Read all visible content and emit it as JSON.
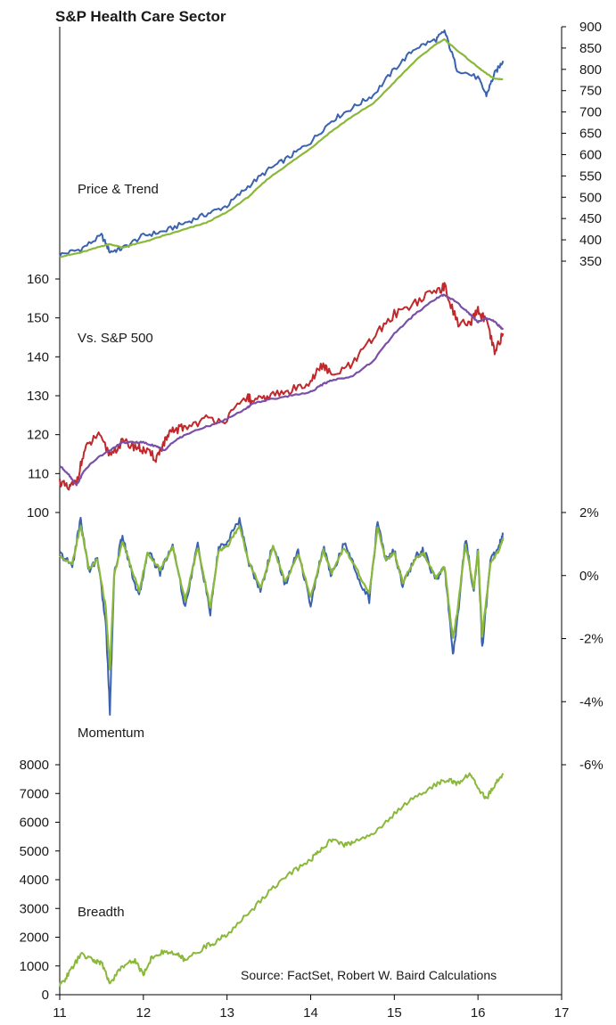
{
  "title": "S&P Health Care Sector",
  "source": "Source: FactSet, Robert W. Baird Calculations",
  "colors": {
    "price": "#3a62b0",
    "trend": "#8ab83a",
    "rel": "#c0282c",
    "rel_trend": "#7a4fa8",
    "mom1": "#3a62b0",
    "mom2": "#8ab83a",
    "breadth": "#8ab83a",
    "axis": "#000000"
  },
  "chart_data": [
    {
      "type": "line",
      "panel_label": "Price & Trend",
      "y_axis": "right",
      "ylim": [
        350,
        900
      ],
      "yticks": [
        "350",
        "400",
        "450",
        "500",
        "550",
        "600",
        "650",
        "700",
        "750",
        "800",
        "850",
        "900"
      ],
      "x": [
        11,
        11.25,
        11.5,
        11.6,
        11.75,
        12,
        12.25,
        12.5,
        12.75,
        13,
        13.25,
        13.5,
        13.75,
        14,
        14.25,
        14.5,
        14.75,
        15,
        15.25,
        15.5,
        15.6,
        15.75,
        16,
        16.1,
        16.2,
        16.3
      ],
      "series": [
        {
          "values": [
            365,
            378,
            410,
            372,
            380,
            410,
            420,
            440,
            460,
            480,
            525,
            565,
            595,
            630,
            680,
            710,
            740,
            800,
            850,
            870,
            890,
            800,
            780,
            740,
            790,
            820
          ]
        },
        {
          "values": [
            360,
            370,
            385,
            390,
            382,
            395,
            410,
            425,
            440,
            465,
            500,
            545,
            580,
            615,
            655,
            690,
            720,
            770,
            820,
            860,
            870,
            845,
            805,
            790,
            778,
            777
          ]
        }
      ]
    },
    {
      "type": "line",
      "panel_label": "Vs. S&P 500",
      "y_axis": "left",
      "ylim": [
        100,
        160
      ],
      "yticks": [
        "100",
        "110",
        "120",
        "130",
        "140",
        "150",
        "160"
      ],
      "x": [
        11,
        11.1,
        11.2,
        11.3,
        11.45,
        11.6,
        11.75,
        11.9,
        12,
        12.15,
        12.25,
        12.35,
        12.5,
        12.75,
        13,
        13.25,
        13.3,
        13.5,
        13.75,
        14,
        14.15,
        14.25,
        14.5,
        14.75,
        15,
        15.25,
        15.5,
        15.6,
        15.75,
        15.9,
        16,
        16.1,
        16.2,
        16.3
      ],
      "series": [
        {
          "values": [
            108,
            106,
            108,
            116,
            120,
            115,
            118,
            117,
            116,
            114,
            118,
            121,
            122,
            124,
            124,
            130,
            128,
            130,
            131,
            134,
            138,
            135,
            138,
            145,
            151,
            154,
            157,
            158,
            149,
            148,
            152,
            149,
            141,
            146
          ]
        },
        {
          "values": [
            112,
            110,
            107,
            111,
            114,
            116,
            118,
            118,
            118,
            117,
            116,
            118,
            120,
            122,
            124,
            127,
            128,
            129,
            130,
            131,
            133,
            134,
            135,
            139,
            146,
            151,
            155,
            156,
            154,
            151,
            149,
            150,
            149,
            147
          ]
        }
      ]
    },
    {
      "type": "line",
      "panel_label": "Momentum",
      "y_axis": "right",
      "ylim": [
        -6,
        2
      ],
      "yticks": [
        "-6%",
        "-4%",
        "-2%",
        "0%",
        "2%"
      ],
      "x": [
        11,
        11.15,
        11.25,
        11.35,
        11.45,
        11.55,
        11.6,
        11.65,
        11.75,
        11.85,
        11.95,
        12.05,
        12.2,
        12.35,
        12.5,
        12.65,
        12.8,
        12.9,
        13,
        13.15,
        13.25,
        13.4,
        13.55,
        13.7,
        13.85,
        14,
        14.15,
        14.25,
        14.4,
        14.55,
        14.7,
        14.8,
        14.9,
        15,
        15.1,
        15.25,
        15.35,
        15.5,
        15.6,
        15.7,
        15.75,
        15.85,
        15.95,
        16,
        16.05,
        16.15,
        16.25,
        16.3
      ],
      "series": [
        {
          "values": [
            0.7,
            0.3,
            1.8,
            0.1,
            0.6,
            -1.5,
            -4.3,
            0.0,
            1.3,
            0.2,
            -0.7,
            0.8,
            0.1,
            1.0,
            -1.0,
            1.0,
            -1.2,
            0.9,
            1.0,
            1.8,
            0.5,
            -0.5,
            1.0,
            -0.3,
            0.8,
            -0.9,
            0.9,
            0.0,
            1.0,
            0.1,
            -0.8,
            1.7,
            0.5,
            0.8,
            -0.3,
            0.6,
            0.8,
            -0.2,
            0.3,
            -2.5,
            -1.5,
            1.2,
            -0.5,
            0.9,
            -2.3,
            0.5,
            0.9,
            1.3
          ]
        },
        {
          "values": [
            0.6,
            0.4,
            1.6,
            0.2,
            0.5,
            -1.0,
            -3.0,
            0.0,
            1.1,
            0.3,
            -0.5,
            0.7,
            0.2,
            0.9,
            -0.8,
            0.9,
            -1.0,
            0.8,
            0.9,
            1.6,
            0.5,
            -0.4,
            0.9,
            -0.2,
            0.7,
            -0.7,
            0.8,
            0.1,
            0.9,
            0.2,
            -0.6,
            1.5,
            0.5,
            0.7,
            -0.2,
            0.5,
            0.7,
            -0.1,
            0.3,
            -2.0,
            -1.2,
            1.0,
            -0.4,
            0.8,
            -1.9,
            0.4,
            0.8,
            1.2
          ]
        }
      ]
    },
    {
      "type": "line",
      "panel_label": "Breadth",
      "y_axis": "left",
      "ylim": [
        0,
        8000
      ],
      "yticks": [
        "0",
        "1000",
        "2000",
        "3000",
        "4000",
        "5000",
        "6000",
        "7000",
        "8000"
      ],
      "x": [
        11,
        11.1,
        11.25,
        11.4,
        11.5,
        11.6,
        11.75,
        11.9,
        12,
        12.1,
        12.25,
        12.4,
        12.5,
        12.75,
        12.85,
        13,
        13.25,
        13.5,
        13.75,
        14,
        14.1,
        14.25,
        14.4,
        14.5,
        14.75,
        15,
        15.25,
        15.5,
        15.65,
        15.75,
        15.9,
        16,
        16.1,
        16.2,
        16.3
      ],
      "series": [
        {
          "values": [
            300,
            700,
            1400,
            1200,
            1100,
            400,
            1000,
            1200,
            700,
            1300,
            1500,
            1400,
            1200,
            1700,
            1800,
            2100,
            2800,
            3600,
            4200,
            4700,
            5000,
            5400,
            5200,
            5300,
            5600,
            6300,
            6900,
            7300,
            7500,
            7300,
            7700,
            7200,
            6800,
            7300,
            7700
          ]
        }
      ]
    }
  ],
  "xticks": [
    "11",
    "12",
    "13",
    "14",
    "15",
    "16",
    "17"
  ]
}
